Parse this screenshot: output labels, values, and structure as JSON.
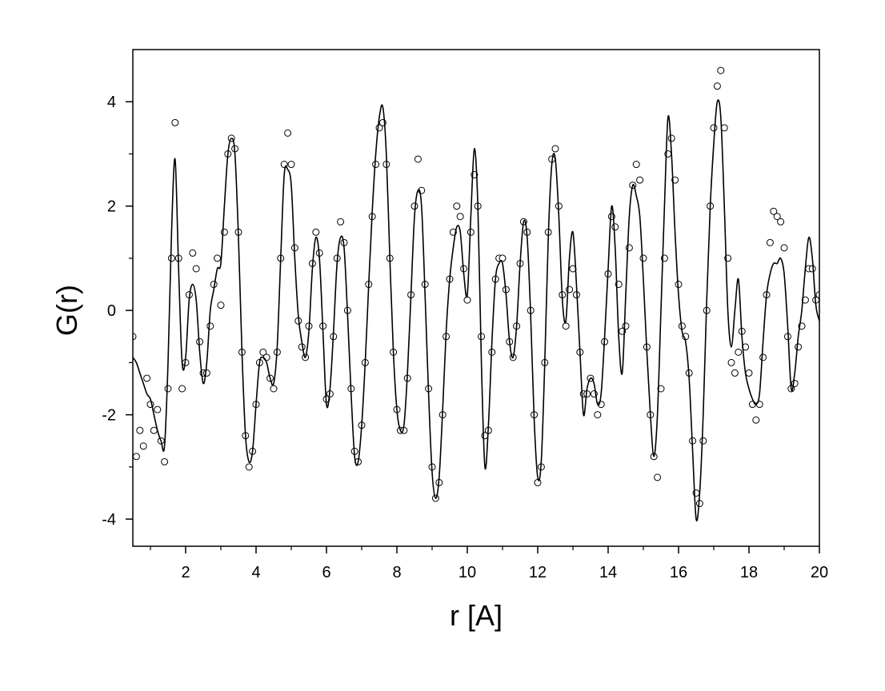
{
  "chart_data": {
    "type": "line",
    "xlabel": "r [A]",
    "ylabel": "G(r)",
    "xlim": [
      0.5,
      20
    ],
    "ylim": [
      -4.52,
      5.0
    ],
    "xticks": [
      2,
      4,
      6,
      8,
      10,
      12,
      14,
      16,
      18,
      20
    ],
    "xminorticks": [
      1,
      3,
      5,
      7,
      9,
      11,
      13,
      15,
      17,
      19
    ],
    "yticks": [
      -4,
      -2,
      0,
      2,
      4
    ],
    "yminorticks": [
      -3,
      -1,
      1,
      3
    ],
    "grid": false,
    "x": [
      0.5,
      0.6,
      0.7,
      0.8,
      0.9,
      1.0,
      1.1,
      1.2,
      1.3,
      1.4,
      1.5,
      1.6,
      1.7,
      1.8,
      1.9,
      2.0,
      2.1,
      2.2,
      2.3,
      2.4,
      2.5,
      2.6,
      2.7,
      2.8,
      2.9,
      3.0,
      3.1,
      3.2,
      3.3,
      3.4,
      3.5,
      3.6,
      3.7,
      3.8,
      3.9,
      4.0,
      4.1,
      4.2,
      4.3,
      4.4,
      4.5,
      4.6,
      4.7,
      4.8,
      4.9,
      5.0,
      5.1,
      5.2,
      5.3,
      5.4,
      5.5,
      5.6,
      5.7,
      5.8,
      5.9,
      6.0,
      6.1,
      6.2,
      6.3,
      6.4,
      6.5,
      6.6,
      6.7,
      6.8,
      6.9,
      7.0,
      7.1,
      7.2,
      7.3,
      7.4,
      7.5,
      7.6,
      7.7,
      7.8,
      7.9,
      8.0,
      8.1,
      8.2,
      8.3,
      8.4,
      8.5,
      8.6,
      8.7,
      8.8,
      8.9,
      9.0,
      9.1,
      9.2,
      9.3,
      9.4,
      9.5,
      9.6,
      9.7,
      9.8,
      9.9,
      10.0,
      10.1,
      10.2,
      10.3,
      10.4,
      10.5,
      10.6,
      10.7,
      10.8,
      10.9,
      11.0,
      11.1,
      11.2,
      11.3,
      11.4,
      11.5,
      11.6,
      11.7,
      11.8,
      11.9,
      12.0,
      12.1,
      12.2,
      12.3,
      12.4,
      12.5,
      12.6,
      12.7,
      12.8,
      12.9,
      13.0,
      13.1,
      13.2,
      13.3,
      13.4,
      13.5,
      13.6,
      13.7,
      13.8,
      13.9,
      14.0,
      14.1,
      14.2,
      14.3,
      14.4,
      14.5,
      14.6,
      14.7,
      14.8,
      14.9,
      15.0,
      15.1,
      15.2,
      15.3,
      15.4,
      15.5,
      15.6,
      15.7,
      15.8,
      15.9,
      16.0,
      16.1,
      16.2,
      16.3,
      16.4,
      16.5,
      16.6,
      16.7,
      16.8,
      16.9,
      17.0,
      17.1,
      17.2,
      17.3,
      17.4,
      17.5,
      17.6,
      17.7,
      17.8,
      17.9,
      18.0,
      18.1,
      18.2,
      18.3,
      18.4,
      18.5,
      18.6,
      18.7,
      18.8,
      18.9,
      19.0,
      19.1,
      19.2,
      19.3,
      19.4,
      19.5,
      19.6,
      19.7,
      19.8,
      19.9,
      20.0
    ],
    "series": [
      {
        "color": "#000000",
        "marker": "circle",
        "values": [
          -0.5,
          -2.8,
          -2.3,
          -2.6,
          -1.3,
          -1.8,
          -2.3,
          -1.9,
          -2.5,
          -2.9,
          -1.5,
          1.0,
          3.6,
          1.0,
          -1.5,
          -1.0,
          0.3,
          1.1,
          0.8,
          -0.6,
          -1.2,
          -1.2,
          -0.3,
          0.5,
          1.0,
          0.1,
          1.5,
          3.0,
          3.3,
          3.1,
          1.5,
          -0.8,
          -2.4,
          -3.0,
          -2.7,
          -1.8,
          -1.0,
          -0.8,
          -0.9,
          -1.3,
          -1.5,
          -0.8,
          1.0,
          2.8,
          3.4,
          2.8,
          1.2,
          -0.2,
          -0.7,
          -0.9,
          -0.3,
          0.9,
          1.5,
          1.1,
          -0.3,
          -1.7,
          -1.6,
          -0.5,
          1.0,
          1.7,
          1.3,
          0.0,
          -1.5,
          -2.7,
          -2.9,
          -2.2,
          -1.0,
          0.5,
          1.8,
          2.8,
          3.5,
          3.6,
          2.8,
          1.0,
          -0.8,
          -1.9,
          -2.3,
          -2.3,
          -1.3,
          0.3,
          2.0,
          2.9,
          2.3,
          0.5,
          -1.5,
          -3.0,
          -3.6,
          -3.3,
          -2.0,
          -0.5,
          0.6,
          1.5,
          2.0,
          1.8,
          0.8,
          0.2,
          1.5,
          2.6,
          2.0,
          -0.5,
          -2.4,
          -2.3,
          -0.8,
          0.6,
          1.0,
          1.0,
          0.4,
          -0.6,
          -0.9,
          -0.3,
          0.9,
          1.7,
          1.5,
          0.0,
          -2.0,
          -3.3,
          -3.0,
          -1.0,
          1.5,
          2.9,
          3.1,
          2.0,
          0.3,
          -0.3,
          0.4,
          0.8,
          0.3,
          -0.8,
          -1.6,
          -1.6,
          -1.3,
          -1.6,
          -2.0,
          -1.8,
          -0.6,
          0.7,
          1.8,
          1.6,
          0.5,
          -0.4,
          -0.3,
          1.2,
          2.4,
          2.8,
          2.5,
          1.0,
          -0.7,
          -2.0,
          -2.8,
          -3.2,
          -1.5,
          1.0,
          3.0,
          3.3,
          2.5,
          0.5,
          -0.3,
          -0.5,
          -1.2,
          -2.5,
          -3.5,
          -3.7,
          -2.5,
          0.0,
          2.0,
          3.5,
          4.3,
          4.6,
          3.5,
          1.0,
          -1.0,
          -1.2,
          -0.8,
          -0.4,
          -0.7,
          -1.2,
          -1.8,
          -2.1,
          -1.8,
          -0.9,
          0.3,
          1.3,
          1.9,
          1.8,
          1.7,
          1.2,
          -0.5,
          -1.5,
          -1.4,
          -0.7,
          -0.3,
          0.2,
          0.8,
          0.8,
          0.2,
          0.3
        ]
      },
      {
        "color": "#000000",
        "marker": "none",
        "values": [
          -0.9,
          -1.0,
          -1.2,
          -1.4,
          -1.6,
          -1.7,
          -2.0,
          -2.3,
          -2.5,
          -2.6,
          -1.0,
          1.5,
          2.9,
          0.8,
          -1.0,
          -0.9,
          0.2,
          0.5,
          0.2,
          -0.8,
          -1.4,
          -1.0,
          0.0,
          0.4,
          0.8,
          0.9,
          2.0,
          3.0,
          3.3,
          3.0,
          1.4,
          -0.8,
          -2.4,
          -2.9,
          -2.7,
          -1.8,
          -1.0,
          -0.9,
          -1.0,
          -1.3,
          -1.4,
          -0.7,
          1.0,
          2.6,
          2.7,
          2.4,
          1.0,
          -0.1,
          -0.6,
          -0.9,
          -0.4,
          0.8,
          1.4,
          1.0,
          -0.4,
          -1.8,
          -1.5,
          -0.4,
          0.9,
          1.4,
          1.2,
          -0.1,
          -1.6,
          -2.8,
          -2.9,
          -2.2,
          -1.0,
          0.5,
          1.9,
          3.0,
          3.7,
          3.9,
          3.0,
          1.0,
          -0.8,
          -1.9,
          -2.3,
          -2.2,
          -1.2,
          0.3,
          1.8,
          2.3,
          2.0,
          0.3,
          -1.6,
          -3.1,
          -3.6,
          -3.2,
          -1.9,
          -0.4,
          0.6,
          1.2,
          1.6,
          1.5,
          0.7,
          0.3,
          1.8,
          3.1,
          2.0,
          -1.0,
          -3.0,
          -2.2,
          -0.6,
          0.6,
          0.9,
          0.9,
          0.3,
          -0.6,
          -0.9,
          -0.3,
          0.9,
          1.7,
          1.4,
          -0.1,
          -2.1,
          -3.2,
          -2.9,
          -1.0,
          1.4,
          2.8,
          2.9,
          1.8,
          0.2,
          -0.2,
          1.0,
          1.5,
          0.5,
          -0.8,
          -2.0,
          -1.5,
          -1.3,
          -1.4,
          -1.8,
          -1.6,
          -0.5,
          0.8,
          2.0,
          1.2,
          -0.5,
          -1.2,
          0.3,
          1.8,
          2.4,
          2.2,
          1.8,
          0.6,
          -0.8,
          -2.0,
          -2.8,
          -2.0,
          0.0,
          2.0,
          3.7,
          3.0,
          1.5,
          0.3,
          -0.4,
          -0.6,
          -1.3,
          -2.7,
          -4.0,
          -3.5,
          -2.0,
          0.2,
          2.0,
          3.2,
          4.0,
          3.7,
          2.0,
          0.0,
          -0.7,
          0.0,
          0.6,
          -0.5,
          -1.2,
          -1.5,
          -1.7,
          -1.8,
          -1.6,
          -0.6,
          0.3,
          0.7,
          0.9,
          0.9,
          1.0,
          0.7,
          -0.3,
          -1.5,
          -1.2,
          -0.5,
          0.0,
          0.8,
          1.4,
          1.0,
          0.1,
          -0.2
        ]
      }
    ]
  }
}
